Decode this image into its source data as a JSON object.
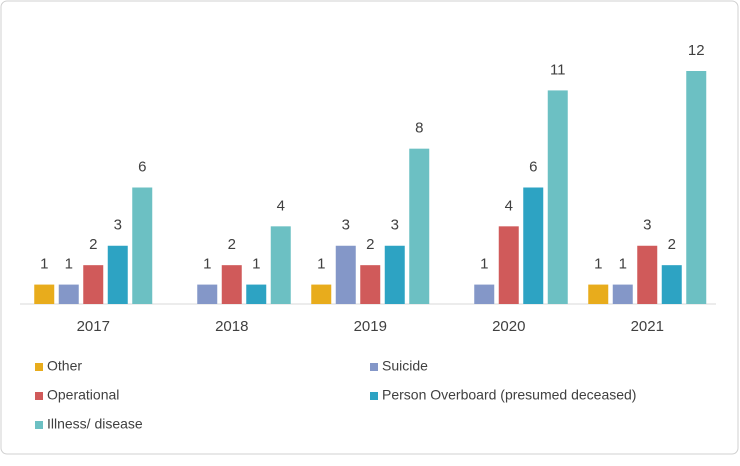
{
  "chart_data": {
    "type": "bar",
    "categories": [
      "2017",
      "2018",
      "2019",
      "2020",
      "2021"
    ],
    "series": [
      {
        "name": "Other",
        "color": "#e8ac1c",
        "values": [
          1,
          null,
          1,
          null,
          1
        ]
      },
      {
        "name": "Suicide",
        "color": "#8497c8",
        "values": [
          1,
          1,
          3,
          1,
          1
        ]
      },
      {
        "name": "Operational",
        "color": "#d05a5a",
        "values": [
          2,
          2,
          2,
          4,
          3
        ]
      },
      {
        "name": "Person Overboard (presumed deceased)",
        "color": "#2da3c3",
        "values": [
          3,
          1,
          3,
          6,
          2
        ]
      },
      {
        "name": "Illness/ disease",
        "color": "#6cc0c3",
        "values": [
          6,
          4,
          8,
          11,
          12
        ]
      }
    ]
  }
}
